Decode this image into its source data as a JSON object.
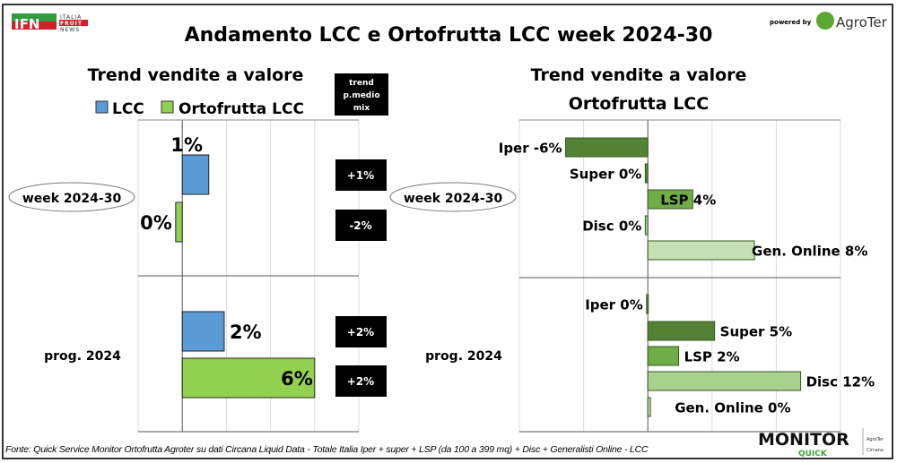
{
  "title": "Andamento LCC e Ortofrutta LCC week 2024-30",
  "logo_left": "IFN ITALIA FRUIT NEWS",
  "powered_by": "powered by",
  "logo_right": "AgroTer",
  "footer": "Fonte: Quick Service Monitor Ortofrutta Agroter su dati Circana Liquid Data - Totale Italia Iper + super + LSP (da 100 a 399 mq) + Disc + Generalisti Online - LCC",
  "logo_bottom": "MONITOR QUICK",
  "colors": {
    "lcc": "#5b9bd5",
    "ortofrutta": "#92d050",
    "iper": "#548235",
    "super": "#548235",
    "lsp": "#70ad47",
    "disc": "#a9d18e",
    "online": "#c5e0b4",
    "badge": "#000000"
  },
  "chart_data": [
    {
      "type": "bar",
      "orientation": "horizontal",
      "title": "Trend vendite a valore",
      "legend": [
        "LCC",
        "Ortofrutta LCC"
      ],
      "legend_placement": "top",
      "groups": [
        "week 2024-30",
        "prog. 2024"
      ],
      "xlim": [
        -2,
        8
      ],
      "grid": true,
      "series": [
        {
          "name": "LCC",
          "values": [
            1.2,
            1.9
          ],
          "labels": [
            "1%",
            "2%"
          ]
        },
        {
          "name": "Ortofrutta LCC",
          "values": [
            -0.3,
            6.0
          ],
          "labels": [
            "0%",
            "6%"
          ]
        }
      ],
      "mix_header": "trend p.medio mix",
      "mix_values": [
        [
          "+1%",
          "-2%"
        ],
        [
          "+2%",
          "+2%"
        ]
      ]
    },
    {
      "type": "bar",
      "orientation": "horizontal",
      "title": "Trend vendite a valore Ortofrutta LCC",
      "groups": [
        "week 2024-30",
        "prog. 2024"
      ],
      "xlim": [
        -10,
        15
      ],
      "grid": true,
      "categories": [
        "Iper",
        "Super",
        "LSP",
        "Disc",
        "Gen. Online"
      ],
      "series": [
        {
          "group": "week 2024-30",
          "values": [
            -6.4,
            -0.2,
            3.5,
            -0.2,
            8.3
          ],
          "labels": [
            "Iper -6%",
            "Super 0%",
            "LSP 4%",
            "Disc 0%",
            "Gen. Online 8%"
          ]
        },
        {
          "group": "prog. 2024",
          "values": [
            -0.1,
            5.2,
            2.4,
            11.9,
            0.2
          ],
          "labels": [
            "Iper 0%",
            "Super 5%",
            "LSP 2%",
            "Disc 12%",
            "Gen. Online 0%"
          ]
        }
      ]
    }
  ]
}
